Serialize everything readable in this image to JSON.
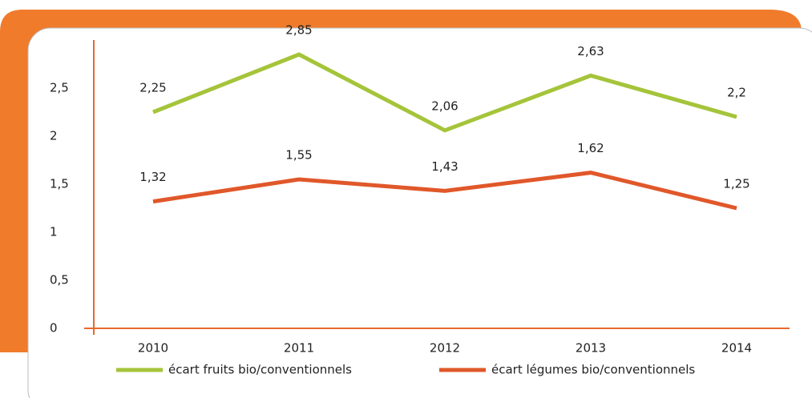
{
  "chart_data": {
    "type": "line",
    "categories": [
      "2010",
      "2011",
      "2012",
      "2013",
      "2014"
    ],
    "series": [
      {
        "name": "écart fruits bio/conventionnels",
        "color": "#a5c43a",
        "values": [
          2.25,
          2.85,
          2.06,
          2.63,
          2.2
        ],
        "value_labels": [
          "2,25",
          "2,85",
          "2,06",
          "2,63",
          "2,2"
        ]
      },
      {
        "name": "écart légumes bio/conventionnels",
        "color": "#e0582a",
        "values": [
          1.32,
          1.55,
          1.43,
          1.62,
          1.25
        ],
        "value_labels": [
          "1,32",
          "1,55",
          "1,43",
          "1,62",
          "1,25"
        ]
      }
    ],
    "ylim": [
      0,
      3
    ],
    "yticks": [
      0,
      {
        "value": 0.5,
        "label": "0,5"
      },
      1,
      {
        "value": 1.5,
        "label": "1,5"
      },
      2,
      {
        "value": 2.5,
        "label": "2,5"
      }
    ],
    "axis_color": "#e8682d",
    "legend": "bottom"
  }
}
